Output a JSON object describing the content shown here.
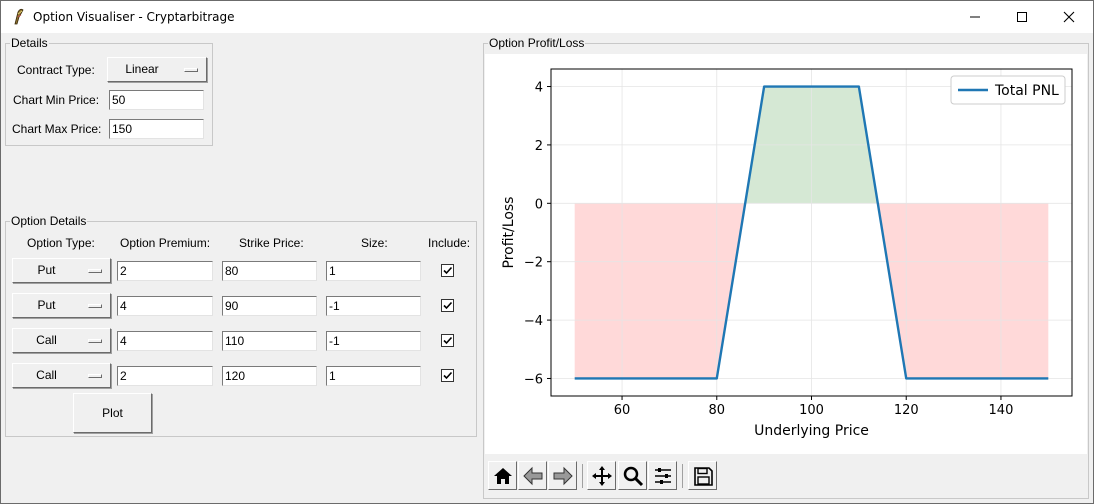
{
  "window": {
    "title": "Option Visualiser - Cryptarbitrage",
    "minimize_icon": "minimize-icon",
    "maximize_icon": "maximize-icon",
    "close_icon": "close-icon"
  },
  "details": {
    "title": "Details",
    "contract_type_label": "Contract Type:",
    "contract_type_value": "Linear",
    "chart_min_label": "Chart Min Price:",
    "chart_min_value": "50",
    "chart_max_label": "Chart Max Price:",
    "chart_max_value": "150"
  },
  "option_details": {
    "title": "Option Details",
    "headers": {
      "type": "Option Type:",
      "premium": "Option Premium:",
      "strike": "Strike Price:",
      "size": "Size:",
      "include": "Include:"
    },
    "rows": [
      {
        "type": "Put",
        "premium": "2",
        "strike": "80",
        "size": "1",
        "include": true
      },
      {
        "type": "Put",
        "premium": "4",
        "strike": "90",
        "size": "-1",
        "include": true
      },
      {
        "type": "Call",
        "premium": "4",
        "strike": "110",
        "size": "-1",
        "include": true
      },
      {
        "type": "Call",
        "premium": "2",
        "strike": "120",
        "size": "1",
        "include": true
      }
    ],
    "plot_label": "Plot"
  },
  "pnl_panel": {
    "title": "Option Profit/Loss"
  },
  "chart_data": {
    "type": "line",
    "title": "",
    "xlabel": "Underlying Price",
    "ylabel": "Profit/Loss",
    "xlim": [
      45,
      155
    ],
    "ylim": [
      -6.6,
      4.6
    ],
    "xticks": [
      60,
      80,
      100,
      120,
      140
    ],
    "yticks": [
      -6,
      -4,
      -2,
      0,
      2,
      4
    ],
    "grid": true,
    "legend_position": "top-right",
    "fill_positive_color": "#d5e8d4",
    "fill_negative_color": "#ffd9d9",
    "series": [
      {
        "name": "Total PNL",
        "color": "#1f77b4",
        "x": [
          50,
          80,
          90,
          110,
          120,
          150
        ],
        "y": [
          -6,
          -6,
          4,
          4,
          -6,
          -6
        ]
      }
    ]
  },
  "toolbar": {
    "buttons": [
      "home-icon",
      "back-arrow-icon",
      "forward-arrow-icon",
      "pan-icon",
      "zoom-icon",
      "configure-subplots-icon",
      "save-icon"
    ]
  }
}
